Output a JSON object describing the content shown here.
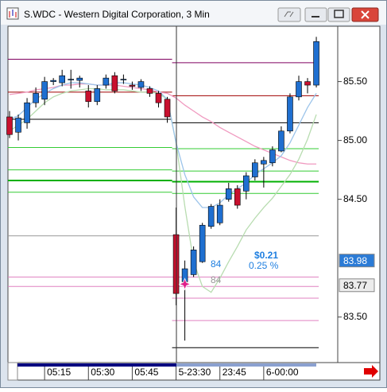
{
  "window": {
    "title": "S.WDC - Western Digital Corporation, 3 Min"
  },
  "chart_data": {
    "type": "candlestick",
    "categories": [
      null,
      null,
      null,
      null,
      "05:15",
      null,
      null,
      null,
      null,
      "05:30",
      null,
      null,
      null,
      null,
      "05:45",
      null,
      null,
      null,
      null,
      "5-23:30",
      null,
      null,
      null,
      null,
      "23:45",
      null,
      null,
      null,
      null,
      "6-00:00",
      null,
      null,
      null,
      null,
      null,
      null
    ],
    "open": [
      85.2,
      85.07,
      85.15,
      85.32,
      85.35,
      85.5,
      85.49,
      85.52,
      85.51,
      85.42,
      85.33,
      85.47,
      85.55,
      85.52,
      85.47,
      85.45,
      85.44,
      85.4,
      85.35,
      84.2,
      83.8,
      83.86,
      83.97,
      84.27,
      84.3,
      84.5,
      84.59,
      84.57,
      84.69,
      84.8,
      84.81,
      84.91,
      85.08,
      85.37,
      85.5,
      85.47
    ],
    "high": [
      85.25,
      85.22,
      85.36,
      85.45,
      85.54,
      85.53,
      85.6,
      85.6,
      85.55,
      85.47,
      85.47,
      85.56,
      85.58,
      85.56,
      85.5,
      85.52,
      85.46,
      85.42,
      85.37,
      84.43,
      83.98,
      84.1,
      84.3,
      84.46,
      84.5,
      84.64,
      84.62,
      84.73,
      84.84,
      84.86,
      84.95,
      85.12,
      85.4,
      85.55,
      85.53,
      85.88
    ],
    "low": [
      85.02,
      85.0,
      85.1,
      85.28,
      85.3,
      85.47,
      85.46,
      85.44,
      85.45,
      85.28,
      85.3,
      85.44,
      85.4,
      85.48,
      85.43,
      85.42,
      85.37,
      85.28,
      85.15,
      83.6,
      83.3,
      83.84,
      83.96,
      84.25,
      84.28,
      84.48,
      84.42,
      84.5,
      84.66,
      84.6,
      84.78,
      84.9,
      85.06,
      85.34,
      85.4,
      85.45
    ],
    "close": [
      85.05,
      85.19,
      85.32,
      85.4,
      85.5,
      85.51,
      85.55,
      85.52,
      85.53,
      85.33,
      85.44,
      85.53,
      85.42,
      85.52,
      85.46,
      85.5,
      85.4,
      85.32,
      85.2,
      83.7,
      83.91,
      84.07,
      84.28,
      84.44,
      84.45,
      84.59,
      84.45,
      84.7,
      84.81,
      84.83,
      84.92,
      85.08,
      85.37,
      85.5,
      85.47,
      85.84
    ],
    "up_color": "#1f6fd0",
    "down_color": "#c8102e",
    "ylim": [
      83.12,
      85.97
    ],
    "yticks": [
      {
        "value": 85.5,
        "label": "85.50"
      },
      {
        "value": 85.0,
        "label": "85.00"
      },
      {
        "value": 84.5,
        "label": "84.50"
      },
      {
        "value": 83.5,
        "label": "83.50"
      }
    ],
    "series": [
      {
        "color": "#f09ac0",
        "values": [
          85.39,
          85.4,
          85.41,
          85.43,
          85.44,
          85.45,
          85.47,
          85.47,
          85.48,
          85.48,
          85.47,
          85.47,
          85.47,
          85.46,
          85.45,
          85.44,
          85.43,
          85.41,
          85.4,
          85.36,
          85.3,
          85.25,
          85.2,
          85.16,
          85.11,
          85.07,
          85.03,
          84.99,
          84.95,
          84.92,
          84.89,
          84.86,
          84.83,
          84.81,
          84.8,
          84.8
        ]
      },
      {
        "color": "#b8dcb0",
        "values": [
          85.08,
          85.13,
          85.18,
          85.25,
          85.32,
          85.37,
          85.4,
          85.42,
          85.43,
          85.44,
          85.44,
          85.43,
          85.43,
          85.43,
          85.42,
          85.41,
          85.41,
          85.4,
          85.35,
          84.98,
          84.44,
          83.97,
          83.76,
          83.71,
          83.83,
          83.97,
          84.1,
          84.24,
          84.34,
          84.43,
          84.51,
          84.61,
          84.71,
          84.84,
          85.01,
          85.22
        ]
      },
      {
        "color": "#9cc4ea",
        "values": [
          85.18,
          85.21,
          85.28,
          85.35,
          85.4,
          85.44,
          85.47,
          85.49,
          85.49,
          85.48,
          85.47,
          85.47,
          85.49,
          85.49,
          85.48,
          85.47,
          85.45,
          85.42,
          85.35,
          84.98,
          84.71,
          84.52,
          84.43,
          84.43,
          84.47,
          84.54,
          84.59,
          84.64,
          84.71,
          84.76,
          84.81,
          84.87,
          84.98,
          85.13,
          85.28,
          85.4
        ]
      }
    ],
    "levels": [
      {
        "color": "#800060",
        "values": [
          85.69,
          85.66
        ]
      },
      {
        "color": "#a00000",
        "values": [
          85.41,
          85.38
        ]
      },
      {
        "color": "#000000",
        "values": [
          85.18,
          85.15
        ]
      },
      {
        "color": "#33cc33",
        "values": [
          84.94,
          84.93
        ]
      },
      {
        "color": "#33cc33",
        "values": [
          84.75,
          84.74
        ]
      },
      {
        "color": "#00b000",
        "width": 2,
        "values": [
          84.66,
          84.65
        ]
      },
      {
        "color": "#33cc33",
        "values": [
          84.56,
          84.55
        ]
      },
      {
        "color": "#999999",
        "values": [
          84.19,
          84.19
        ]
      },
      {
        "color": "#e080c0",
        "values": [
          83.84,
          83.84
        ]
      },
      {
        "color": "#e080c0",
        "values": [
          83.76,
          83.76
        ]
      },
      {
        "color": "#e080c0",
        "values": [
          null,
          83.66
        ]
      },
      {
        "color": "#e080c0",
        "values": [
          null,
          83.47
        ]
      },
      {
        "color": "#000000",
        "values": [
          null,
          83.24
        ]
      }
    ],
    "price_markers": [
      {
        "value": 83.98,
        "color": "#2b7bd6",
        "text_color": "#ffffff"
      },
      {
        "value": 83.77,
        "color": "#ececec",
        "text_color": "#000000"
      }
    ],
    "entry_price": 83.78,
    "annotations": {
      "change": "$0.21",
      "change_pct": "0.25 %",
      "qty": "84",
      "qty_prev": "84"
    }
  }
}
